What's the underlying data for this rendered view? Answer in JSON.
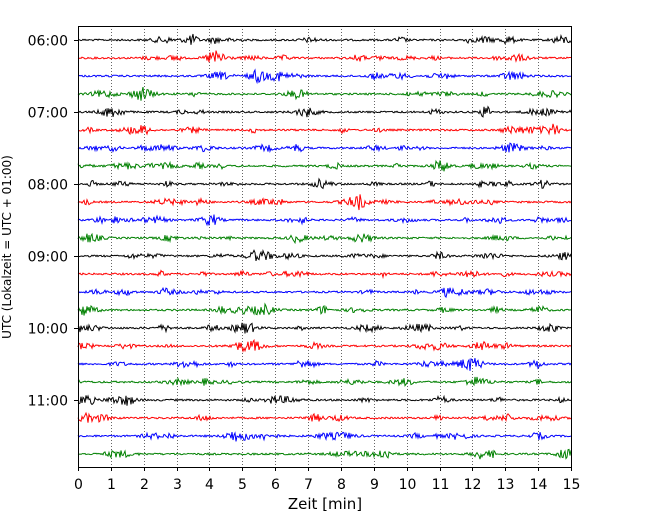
{
  "chart_data": {
    "type": "line",
    "title": "",
    "xlabel": "Zeit  [min]",
    "ylabel": "UTC (Lokalzeit = UTC + 01:00)",
    "xlim": [
      0,
      15
    ],
    "x_ticks": [
      "0",
      "1",
      "2",
      "3",
      "4",
      "5",
      "6",
      "7",
      "8",
      "9",
      "10",
      "11",
      "12",
      "13",
      "14",
      "15"
    ],
    "y_ticks": [
      "06:00",
      "07:00",
      "08:00",
      "09:00",
      "10:00",
      "11:00"
    ],
    "grid": "vertical dotted lines at each minute",
    "trace_colors": [
      "#000000",
      "#ff0000",
      "#0000ff",
      "#008000"
    ],
    "series": [
      {
        "start": "06:00",
        "color": "#000000"
      },
      {
        "start": "06:15",
        "color": "#ff0000"
      },
      {
        "start": "06:30",
        "color": "#0000ff"
      },
      {
        "start": "06:45",
        "color": "#008000"
      },
      {
        "start": "07:00",
        "color": "#000000"
      },
      {
        "start": "07:15",
        "color": "#ff0000"
      },
      {
        "start": "07:30",
        "color": "#0000ff"
      },
      {
        "start": "07:45",
        "color": "#008000"
      },
      {
        "start": "08:00",
        "color": "#000000"
      },
      {
        "start": "08:15",
        "color": "#ff0000"
      },
      {
        "start": "08:30",
        "color": "#0000ff"
      },
      {
        "start": "08:45",
        "color": "#008000"
      },
      {
        "start": "09:00",
        "color": "#000000"
      },
      {
        "start": "09:15",
        "color": "#ff0000"
      },
      {
        "start": "09:30",
        "color": "#0000ff"
      },
      {
        "start": "09:45",
        "color": "#008000"
      },
      {
        "start": "10:00",
        "color": "#000000"
      },
      {
        "start": "10:15",
        "color": "#ff0000"
      },
      {
        "start": "10:30",
        "color": "#0000ff"
      },
      {
        "start": "10:45",
        "color": "#008000"
      },
      {
        "start": "11:00",
        "color": "#000000"
      },
      {
        "start": "11:15",
        "color": "#ff0000"
      },
      {
        "start": "11:30",
        "color": "#0000ff"
      },
      {
        "start": "11:45",
        "color": "#008000"
      }
    ]
  }
}
